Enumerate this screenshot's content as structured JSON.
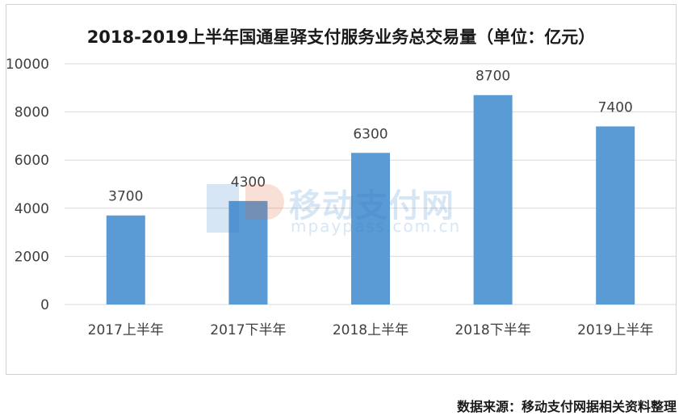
{
  "source_note": "数据来源：移动支付网据相关资料整理",
  "watermark": {
    "cn": "移动支付网",
    "en": "mpaypass.com.cn"
  },
  "colors": {
    "bar": "#5b9bd5",
    "grid": "#d9d9d9",
    "axis_text": "#404040",
    "label_text": "#404040"
  },
  "chart_data": {
    "type": "bar",
    "title": "2018-2019上半年国通星驿支付服务业务总交易量（单位：亿元）",
    "categories": [
      "2017上半年",
      "2017下半年",
      "2018上半年",
      "2018下半年",
      "2019上半年"
    ],
    "values": [
      3700,
      4300,
      6300,
      8700,
      7400
    ],
    "ylim": [
      0,
      10000
    ],
    "yticks": [
      0,
      2000,
      4000,
      6000,
      8000,
      10000
    ],
    "xlabel": "",
    "ylabel": "",
    "grid": true,
    "legend": false,
    "data_labels": true
  }
}
